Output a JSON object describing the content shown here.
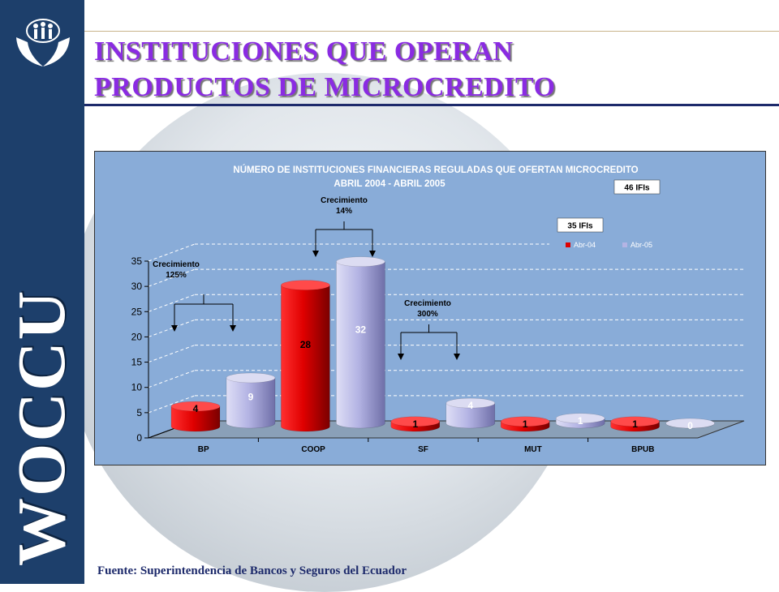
{
  "page": {
    "title_line1": "INSTITUCIONES QUE OPERAN",
    "title_line2": "PRODUCTOS DE MICROCREDITO",
    "brand": "WOCCU",
    "source": "Fuente: Superintendencia de Bancos y Seguros del Ecuador"
  },
  "logo": {
    "icon": "hands-holding-family-icon"
  },
  "chart_data": {
    "type": "bar",
    "title": "NÚMERO DE INSTITUCIONES FINANCIERAS REGULADAS QUE OFERTAN MICROCREDITO",
    "subtitle": "ABRIL 2004 - ABRIL 2005",
    "categories": [
      "BP",
      "COOP",
      "SF",
      "MUT",
      "BPUB"
    ],
    "series": [
      {
        "name": "Abr-04",
        "color": "#e00000",
        "values": [
          4,
          28,
          1,
          1,
          1
        ]
      },
      {
        "name": "Abr-05",
        "color": "#b4b4e4",
        "values": [
          9,
          32,
          4,
          1,
          0
        ]
      }
    ],
    "ylim": [
      0,
      35
    ],
    "yticks": [
      "0",
      "5",
      "10",
      "15",
      "20",
      "25",
      "30",
      "35"
    ],
    "grid": true,
    "legend": "top-right",
    "totals": [
      "35 IFIs",
      "46 IFIs"
    ],
    "annotations": [
      {
        "category": "BP",
        "label": "Crecimiento",
        "value": "125%"
      },
      {
        "category": "COOP",
        "label": "Crecimiento",
        "value": "14%"
      },
      {
        "category": "SF",
        "label": "Crecimiento",
        "value": "300%"
      }
    ]
  }
}
